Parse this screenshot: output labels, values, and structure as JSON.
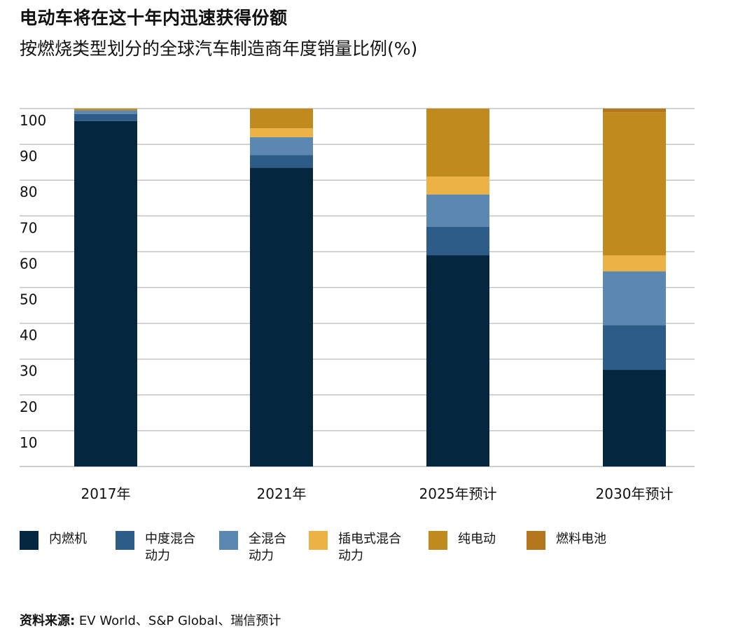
{
  "header": {
    "title": "电动车将在这十年内迅速获得份额",
    "subtitle": "按燃烧类型划分的全球汽车制造商年度销量比例(%)"
  },
  "source": {
    "label": "资料来源:",
    "text": " EV World、S&P Global、瑞信预计"
  },
  "chart_data": {
    "type": "bar",
    "stacked": true,
    "categories": [
      "2017年",
      "2021年",
      "2025年预计",
      "2030年预计"
    ],
    "series": [
      {
        "name": "内燃机",
        "color": "#04263F",
        "values": [
          96.5,
          83.5,
          59,
          27
        ]
      },
      {
        "name": "中度混合\n动力",
        "color": "#2C5C87",
        "values": [
          2,
          3.5,
          8,
          12.5
        ]
      },
      {
        "name": "全混合\n动力",
        "color": "#5B87B0",
        "values": [
          1,
          5,
          9,
          15
        ]
      },
      {
        "name": "插电式混合\n动力",
        "color": "#ECB245",
        "values": [
          0,
          2.5,
          5,
          4.5
        ]
      },
      {
        "name": "纯电动",
        "color": "#C18A1E",
        "values": [
          0.5,
          5.5,
          19,
          40
        ]
      },
      {
        "name": "燃料电池",
        "color": "#B4761D",
        "values": [
          0,
          0,
          0,
          1
        ]
      }
    ],
    "yticks": [
      "10",
      "20",
      "30",
      "40",
      "50",
      "60",
      "70",
      "80",
      "90",
      "100"
    ],
    "ylim": [
      0,
      100
    ],
    "grid": true,
    "legend_position": "bottom"
  }
}
